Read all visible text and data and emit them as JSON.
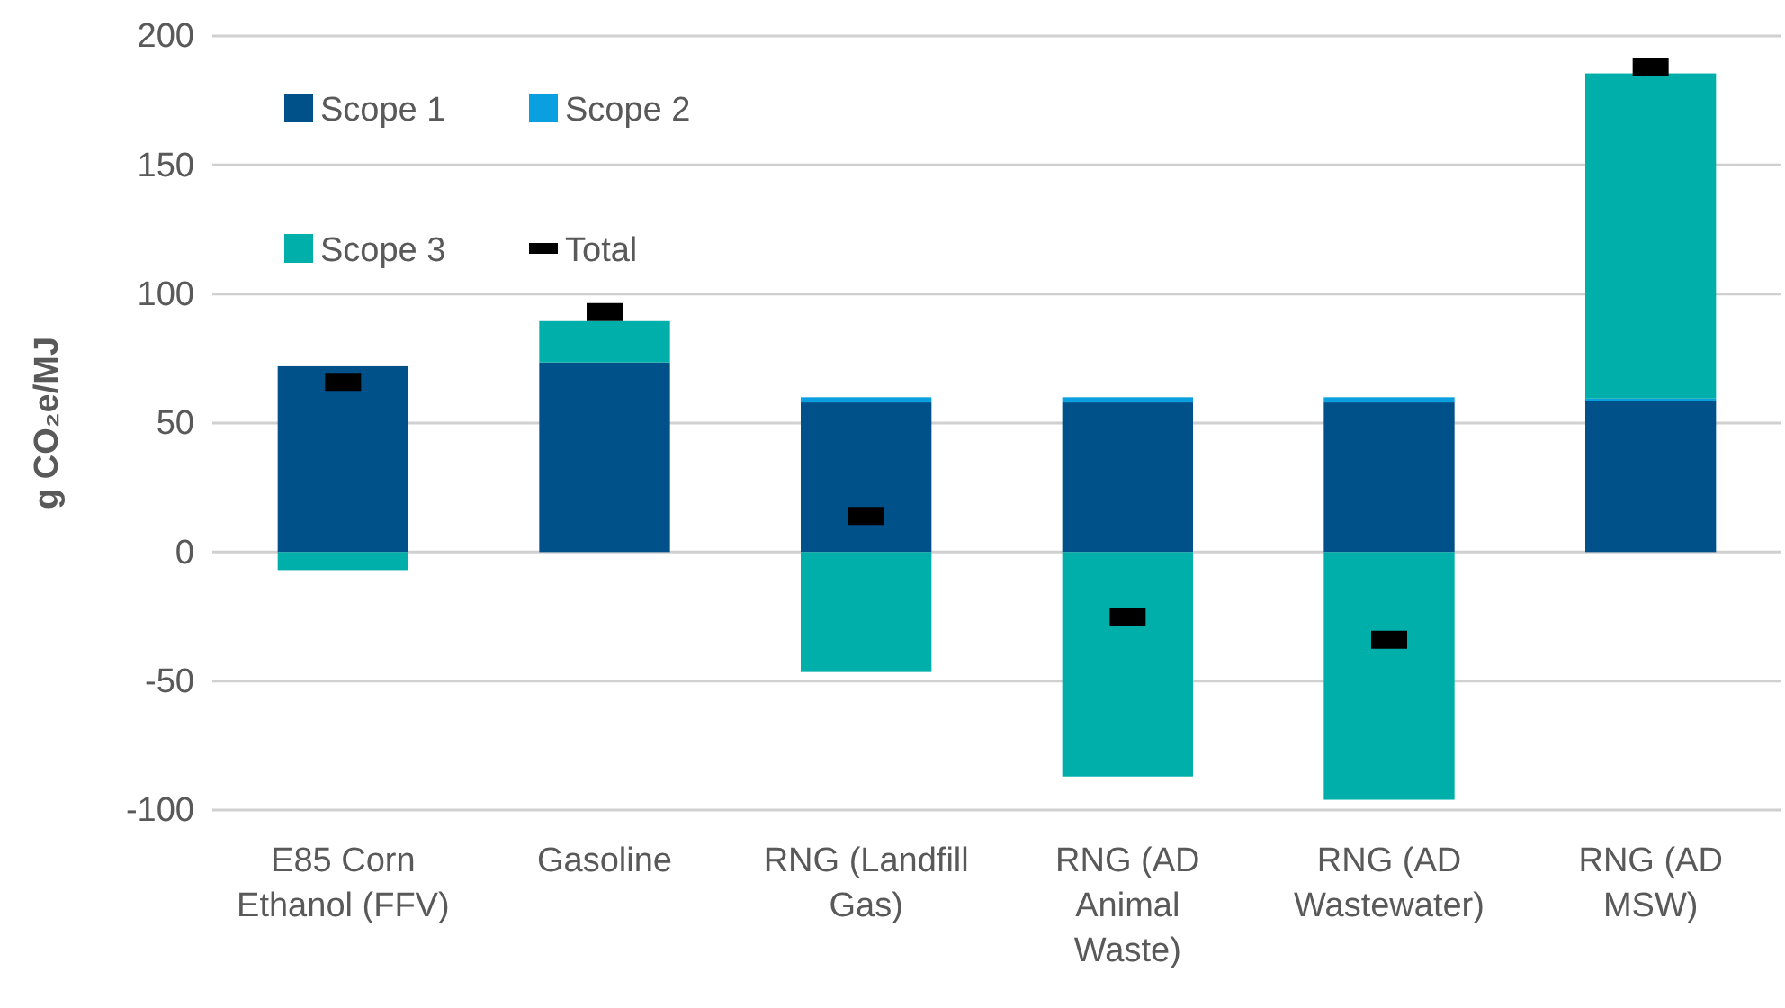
{
  "chart_data": {
    "type": "bar",
    "stacked": true,
    "ylabel": "g CO₂e/MJ",
    "categories": [
      "E85 Corn Ethanol (FFV)",
      "Gasoline",
      "RNG (Landfill Gas)",
      "RNG (AD Animal Waste)",
      "RNG (AD Wastewater)",
      "RNG (AD MSW)"
    ],
    "series": [
      {
        "name": "Scope 1",
        "color": "#00508a",
        "values": [
          72,
          73.5,
          58,
          58,
          58,
          58.5
        ]
      },
      {
        "name": "Scope 2",
        "color": "#0aa0e0",
        "values": [
          0,
          0,
          2,
          2,
          2,
          1
        ]
      },
      {
        "name": "Scope 3",
        "color": "#00afaa",
        "values": [
          -7,
          16,
          -46.5,
          -87,
          -96,
          126
        ]
      },
      {
        "name": "Total",
        "type": "scatter",
        "color": "#000000",
        "values": [
          66,
          93,
          14,
          -25,
          -34,
          188
        ]
      }
    ],
    "ylim": [
      -100,
      200
    ],
    "yticks": [
      -100,
      -50,
      0,
      50,
      100,
      150,
      200
    ],
    "grid": "y",
    "legend": "top left"
  }
}
